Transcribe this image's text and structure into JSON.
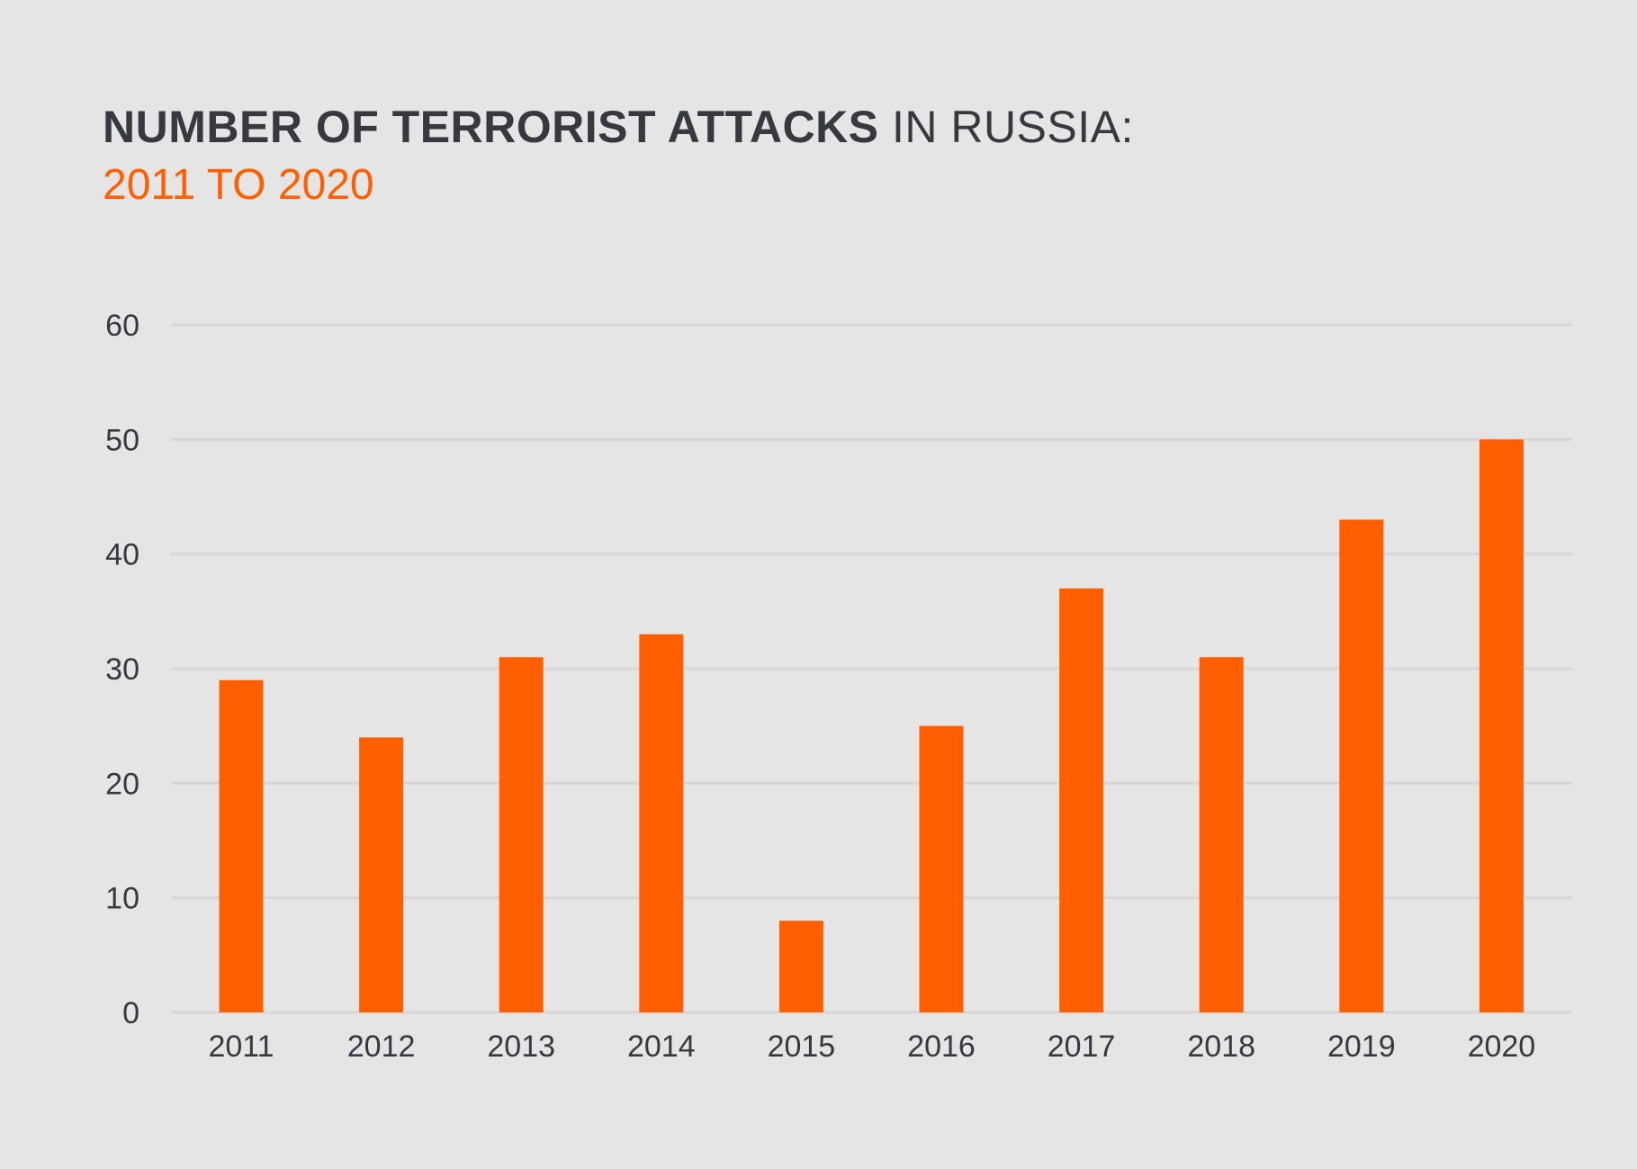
{
  "chart_data": {
    "type": "bar",
    "title_bold": "NUMBER OF TERRORIST ATTACKS",
    "title_light": "IN RUSSIA:",
    "subtitle": "2011 TO 2020",
    "categories": [
      "2011",
      "2012",
      "2013",
      "2014",
      "2015",
      "2016",
      "2017",
      "2018",
      "2019",
      "2020"
    ],
    "values": [
      29,
      24,
      31,
      33,
      8,
      25,
      37,
      31,
      43,
      50
    ],
    "yticks": [
      0,
      10,
      20,
      30,
      40,
      50,
      60
    ],
    "ylim": [
      0,
      60
    ],
    "xlabel": "",
    "ylabel": "",
    "grid": true,
    "colors": {
      "bar": "#ff5f00",
      "text": "#363940",
      "subtitle": "#ff5f00",
      "grid": "#d6d6d6",
      "background": "#e5e5e5"
    }
  }
}
